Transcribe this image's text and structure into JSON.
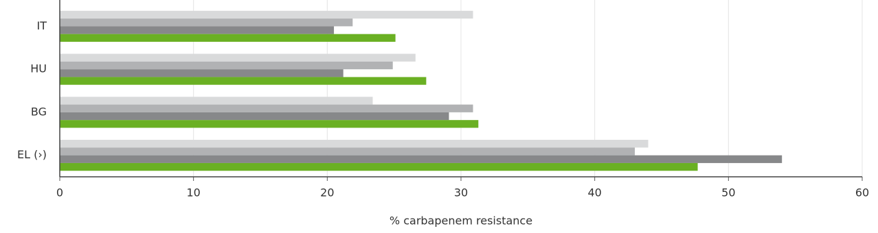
{
  "chart_data": {
    "type": "hbar",
    "x_label": "% carbapenem resistance",
    "categories": [
      "IT",
      "HU",
      "BG",
      "EL (›)"
    ],
    "series": [
      {
        "color": "#d9dadb",
        "values": [
          30.9,
          26.6,
          23.4,
          44.0
        ]
      },
      {
        "color": "#b1b2b4",
        "values": [
          21.9,
          24.9,
          30.9,
          43.0
        ]
      },
      {
        "color": "#87888a",
        "values": [
          20.5,
          21.2,
          29.1,
          54.0
        ]
      },
      {
        "color": "#6ab023",
        "values": [
          25.1,
          27.4,
          31.3,
          47.7
        ]
      }
    ],
    "xlim": [
      0,
      60
    ],
    "xticks": [
      0,
      10,
      20,
      30,
      40,
      50,
      60
    ],
    "grid": true
  }
}
